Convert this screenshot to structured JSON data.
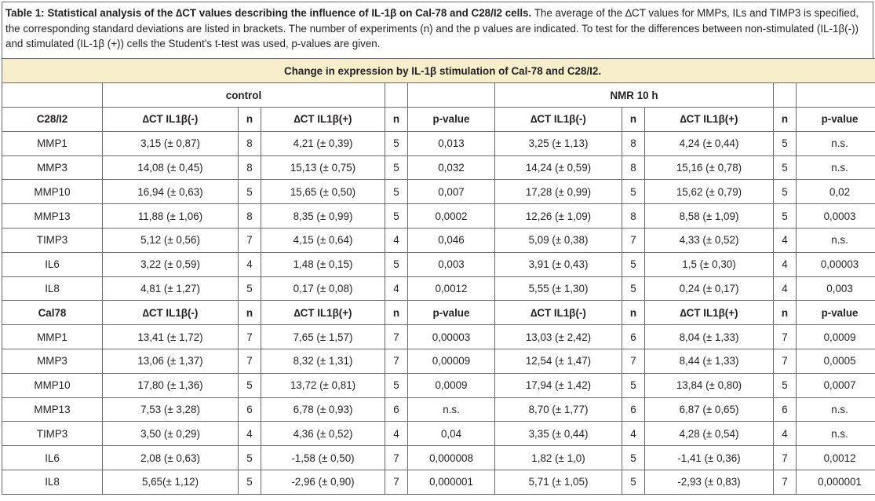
{
  "caption": {
    "bold": "Table 1: Statistical analysis of the ∆CT values describing the influence of IL-1β on Cal-78 and C28/I2 cells.",
    "text": " The average of the ∆CT values for MMPs, ILs and TIMP3 is specified, the corresponding standard deviations are listed in brackets. The number of experiments (n) and the p values are indicated. To test for the differences between non-stimulated (IL-1β(-)) and stimulated (IL-1β (+)) cells the Student’s t-test was used, p-values are given."
  },
  "table_title": "Change in expression by IL-1β stimulation of Cal-78 and C28/I2.",
  "groups": {
    "control": "control",
    "nmr": "NMR 10 h"
  },
  "sections": [
    {
      "header": [
        "C28/I2",
        "∆CT IL1β(-)",
        "n",
        "∆CT IL1β(+)",
        "n",
        "p-value",
        "∆CT IL1β(-)",
        "n",
        "∆CT IL1β(+)",
        "n",
        "p-value"
      ],
      "rows": [
        [
          "MMP1",
          "3,15 (± 0,87)",
          "8",
          "4,21 (± 0,39)",
          "5",
          "0,013",
          "3,25 (± 1,13)",
          "8",
          "4,24 (± 0,44)",
          "5",
          "n.s."
        ],
        [
          "MMP3",
          "14,08 (± 0,45)",
          "8",
          "15,13 (± 0,75)",
          "5",
          "0,032",
          "14,24  (± 0,59)",
          "8",
          "15,16  (± 0,78)",
          "5",
          "n.s."
        ],
        [
          "MMP10",
          "16,94 (± 0,63)",
          "5",
          "15,65 (± 0,50)",
          "5",
          "0,007",
          "17,28 (± 0,99)",
          "5",
          "15,62 (± 0,79)",
          "5",
          "0,02"
        ],
        [
          "MMP13",
          "11,88 (± 1,06)",
          "8",
          "8,35 (± 0,99)",
          "5",
          "0,0002",
          "12,26 (± 1,09)",
          "8",
          "8,58 (± 1,09)",
          "5",
          "0,0003"
        ],
        [
          "TIMP3",
          "5,12 (± 0,56)",
          "7",
          "4,15 (± 0,64)",
          "4",
          "0,046",
          "5,09 (± 0,38)",
          "7",
          "4,33 (± 0,52)",
          "4",
          "n.s."
        ],
        [
          "IL6",
          "3,22 (± 0,59)",
          "4",
          "1,48 (± 0,15)",
          "5",
          "0,003",
          "3,91 (± 0,43)",
          "5",
          "1,5 (± 0,30)",
          "4",
          "0,00003"
        ],
        [
          "IL8",
          "4,81 (± 1,27)",
          "5",
          "0,17 (± 0,08)",
          "4",
          "0,0012",
          "5,55  (± 1,30)",
          "5",
          "0,24 (± 0,17)",
          "4",
          "0,003"
        ]
      ]
    },
    {
      "header": [
        "Cal78",
        "∆CT IL1β(-)",
        "n",
        "∆CT IL1β(+)",
        "n",
        "p-value",
        "∆CT IL1β(-)",
        "n",
        "∆CT IL1β(+)",
        "n",
        "p-value"
      ],
      "rows": [
        [
          "MMP1",
          "13,41 (± 1,72)",
          "7",
          "7,65 (± 1,57)",
          "7",
          "0,00003",
          "13,03 (± 2,42)",
          "6",
          "8,04 (± 1,33)",
          "7",
          "0,0009"
        ],
        [
          "MMP3",
          "13,06 (± 1,37)",
          "7",
          "8,32 (± 1,31)",
          "7",
          "0,00009",
          "12,54  (± 1,47)",
          "7",
          "8,44  (± 1,33)",
          "7",
          "0,0005"
        ],
        [
          "MMP10",
          "17,80 (± 1,36)",
          "5",
          "13,72 (± 0,81)",
          "5",
          "0,0009",
          "17,94 (± 1,42)",
          "5",
          "13,84 (± 0,80)",
          "5",
          "0,0007"
        ],
        [
          "MMP13",
          "7,53 (± 3,28)",
          "6",
          "6,78 (± 0,93)",
          "6",
          "n.s.",
          "8,70 (± 1,77)",
          "6",
          "6,87 (± 0,65)",
          "6",
          "n.s."
        ],
        [
          "TIMP3",
          "3,50 (± 0,29)",
          "4",
          "4,36 (± 0,52)",
          "4",
          "0,04",
          "3,35 (± 0,44)",
          "4",
          "4,28 (± 0,54)",
          "4",
          "n.s."
        ],
        [
          "IL6",
          "2,08 (± 0,63)",
          "5",
          "-1,58 (± 0,50)",
          "7",
          "0,000008",
          "1,82 (± 1,0)",
          "5",
          "-1,41 (±  0,36)",
          "7",
          "0,0012"
        ],
        [
          "IL8",
          "5,65(± 1,12)",
          "5",
          "-2,96 (± 0,90)",
          "7",
          "0,000001",
          "5,71  (± 1,05)",
          "5",
          "-2,93  (± 0,83)",
          "7",
          "0,000001"
        ]
      ]
    }
  ]
}
